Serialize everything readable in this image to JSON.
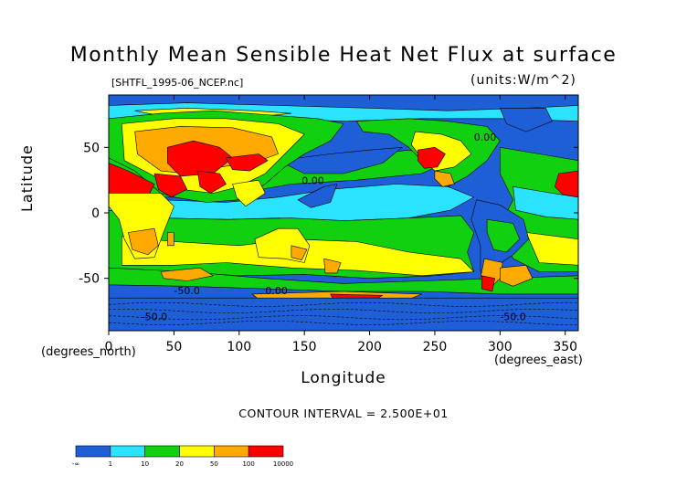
{
  "chart_data": {
    "type": "heatmap",
    "title": "Monthly Mean Sensible Heat Net Flux at surface",
    "subtitle_left": "[SHTFL_1995-06_NCEP.nc]",
    "subtitle_right": "(units:W/m^2)",
    "xlabel": "Longitude",
    "ylabel": "Latitude",
    "x_unit_label": "(degrees_east)",
    "y_unit_label": "(degrees_north)",
    "xlim": [
      0,
      360
    ],
    "ylim": [
      -90,
      90
    ],
    "x_ticks": [
      0,
      50,
      100,
      150,
      200,
      250,
      300,
      350
    ],
    "y_ticks": [
      -50,
      0,
      50
    ],
    "contour_interval_text": "CONTOUR INTERVAL = 2.500E+01",
    "contour_labels": [
      "0.00",
      "0.00",
      "-50.0",
      "0.00",
      "-50.0",
      "-50.0"
    ],
    "colorbar": {
      "labels": [
        "-∞",
        "1",
        "10",
        "20",
        "50",
        "100",
        "10000"
      ],
      "colors": [
        "#1e5fd8",
        "#29e3ff",
        "#10d010",
        "#ffff00",
        "#ffaa00",
        "#ff0000"
      ]
    },
    "grid": false,
    "legend": "bottom-left"
  }
}
